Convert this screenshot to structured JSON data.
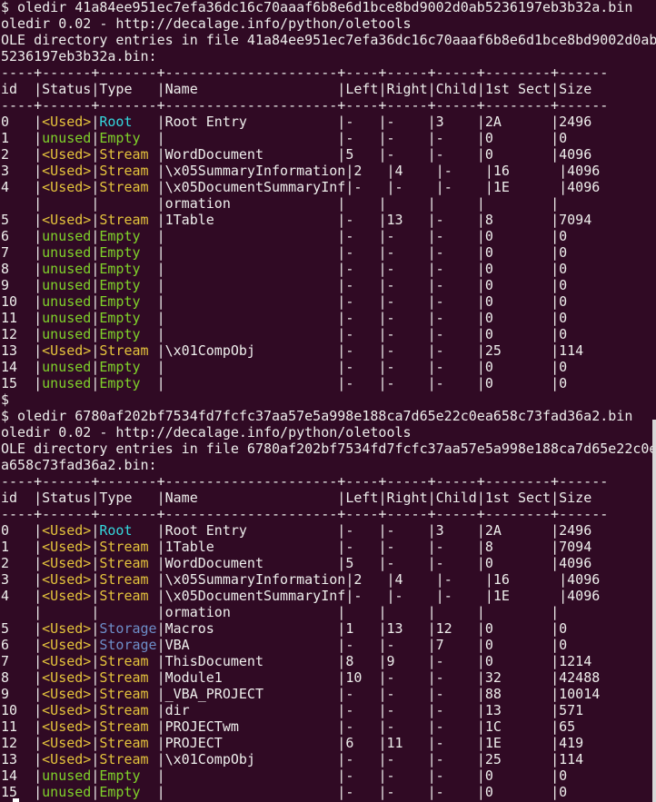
{
  "colors": {
    "background": "#300a24",
    "text": "#eeeeec",
    "used": "#e5c43c",
    "unused": "#7fd22a",
    "root": "#34d6dc",
    "storage": "#6d8ec8",
    "stream": "#e5c43c",
    "empty": "#7fd22a"
  },
  "table_header": {
    "id": "id",
    "status": "Status",
    "type": "Type",
    "name": "Name",
    "left": "Left",
    "right": "Right",
    "child": "Child",
    "sect": "1st Sect",
    "size": "Size"
  },
  "separator": "----+------+-------+---------------------+----+-----+-----+--------+------",
  "prompt_only": "$",
  "blocks": [
    {
      "command": "$ oledir 41a84ee951ec7efa36dc16c70aaaf6b8e6d1bce8bd9002d0ab5236197eb3b32a.bin",
      "version": "oledir 0.02 - http://decalage.info/python/oletools",
      "entries_line": "OLE directory entries in file 41a84ee951ec7efa36dc16c70aaaf6b8e6d1bce8bd9002d0ab5236197eb3b32a.bin:",
      "rows": [
        {
          "id": "0",
          "status": "<Used>",
          "type": "Root",
          "name": "Root Entry",
          "left": "-",
          "right": "-",
          "child": "3",
          "sect": "2A",
          "size": "2496"
        },
        {
          "id": "1",
          "status": "unused",
          "type": "Empty",
          "name": "",
          "left": "-",
          "right": "-",
          "child": "-",
          "sect": "0",
          "size": "0"
        },
        {
          "id": "2",
          "status": "<Used>",
          "type": "Stream",
          "name": "WordDocument",
          "left": "5",
          "right": "-",
          "child": "-",
          "sect": "0",
          "size": "4096"
        },
        {
          "id": "3",
          "status": "<Used>",
          "type": "Stream",
          "name": "\\x05SummaryInformation",
          "left": "2",
          "right": "4",
          "child": "-",
          "sect": "16",
          "size": "4096"
        },
        {
          "id": "4",
          "status": "<Used>",
          "type": "Stream",
          "name": "\\x05DocumentSummaryInf",
          "name_cont": "ormation",
          "left": "-",
          "right": "-",
          "child": "-",
          "sect": "1E",
          "size": "4096"
        },
        {
          "id": "5",
          "status": "<Used>",
          "type": "Stream",
          "name": "1Table",
          "left": "-",
          "right": "13",
          "child": "-",
          "sect": "8",
          "size": "7094"
        },
        {
          "id": "6",
          "status": "unused",
          "type": "Empty",
          "name": "",
          "left": "-",
          "right": "-",
          "child": "-",
          "sect": "0",
          "size": "0"
        },
        {
          "id": "7",
          "status": "unused",
          "type": "Empty",
          "name": "",
          "left": "-",
          "right": "-",
          "child": "-",
          "sect": "0",
          "size": "0"
        },
        {
          "id": "8",
          "status": "unused",
          "type": "Empty",
          "name": "",
          "left": "-",
          "right": "-",
          "child": "-",
          "sect": "0",
          "size": "0"
        },
        {
          "id": "9",
          "status": "unused",
          "type": "Empty",
          "name": "",
          "left": "-",
          "right": "-",
          "child": "-",
          "sect": "0",
          "size": "0"
        },
        {
          "id": "10",
          "status": "unused",
          "type": "Empty",
          "name": "",
          "left": "-",
          "right": "-",
          "child": "-",
          "sect": "0",
          "size": "0"
        },
        {
          "id": "11",
          "status": "unused",
          "type": "Empty",
          "name": "",
          "left": "-",
          "right": "-",
          "child": "-",
          "sect": "0",
          "size": "0"
        },
        {
          "id": "12",
          "status": "unused",
          "type": "Empty",
          "name": "",
          "left": "-",
          "right": "-",
          "child": "-",
          "sect": "0",
          "size": "0"
        },
        {
          "id": "13",
          "status": "<Used>",
          "type": "Stream",
          "name": "\\x01CompObj",
          "left": "-",
          "right": "-",
          "child": "-",
          "sect": "25",
          "size": "114"
        },
        {
          "id": "14",
          "status": "unused",
          "type": "Empty",
          "name": "",
          "left": "-",
          "right": "-",
          "child": "-",
          "sect": "0",
          "size": "0"
        },
        {
          "id": "15",
          "status": "unused",
          "type": "Empty",
          "name": "",
          "left": "-",
          "right": "-",
          "child": "-",
          "sect": "0",
          "size": "0"
        }
      ]
    },
    {
      "command": "$ oledir 6780af202bf7534fd7fcfc37aa57e5a998e188ca7d65e22c0ea658c73fad36a2.bin",
      "version": "oledir 0.02 - http://decalage.info/python/oletools",
      "entries_line": "OLE directory entries in file 6780af202bf7534fd7fcfc37aa57e5a998e188ca7d65e22c0ea658c73fad36a2.bin:",
      "rows": [
        {
          "id": "0",
          "status": "<Used>",
          "type": "Root",
          "name": "Root Entry",
          "left": "-",
          "right": "-",
          "child": "3",
          "sect": "2A",
          "size": "2496"
        },
        {
          "id": "1",
          "status": "<Used>",
          "type": "Stream",
          "name": "1Table",
          "left": "-",
          "right": "-",
          "child": "-",
          "sect": "8",
          "size": "7094"
        },
        {
          "id": "2",
          "status": "<Used>",
          "type": "Stream",
          "name": "WordDocument",
          "left": "5",
          "right": "-",
          "child": "-",
          "sect": "0",
          "size": "4096"
        },
        {
          "id": "3",
          "status": "<Used>",
          "type": "Stream",
          "name": "\\x05SummaryInformation",
          "left": "2",
          "right": "4",
          "child": "-",
          "sect": "16",
          "size": "4096"
        },
        {
          "id": "4",
          "status": "<Used>",
          "type": "Stream",
          "name": "\\x05DocumentSummaryInf",
          "name_cont": "ormation",
          "left": "-",
          "right": "-",
          "child": "-",
          "sect": "1E",
          "size": "4096"
        },
        {
          "id": "5",
          "status": "<Used>",
          "type": "Storage",
          "name": "Macros",
          "left": "1",
          "right": "13",
          "child": "12",
          "sect": "0",
          "size": "0"
        },
        {
          "id": "6",
          "status": "<Used>",
          "type": "Storage",
          "name": "VBA",
          "left": "-",
          "right": "-",
          "child": "7",
          "sect": "0",
          "size": "0"
        },
        {
          "id": "7",
          "status": "<Used>",
          "type": "Stream",
          "name": "ThisDocument",
          "left": "8",
          "right": "9",
          "child": "-",
          "sect": "0",
          "size": "1214"
        },
        {
          "id": "8",
          "status": "<Used>",
          "type": "Stream",
          "name": "Module1",
          "left": "10",
          "right": "-",
          "child": "-",
          "sect": "32",
          "size": "42488"
        },
        {
          "id": "9",
          "status": "<Used>",
          "type": "Stream",
          "name": "_VBA_PROJECT",
          "left": "-",
          "right": "-",
          "child": "-",
          "sect": "88",
          "size": "10014"
        },
        {
          "id": "10",
          "status": "<Used>",
          "type": "Stream",
          "name": "dir",
          "left": "-",
          "right": "-",
          "child": "-",
          "sect": "13",
          "size": "571"
        },
        {
          "id": "11",
          "status": "<Used>",
          "type": "Stream",
          "name": "PROJECTwm",
          "left": "-",
          "right": "-",
          "child": "-",
          "sect": "1C",
          "size": "65"
        },
        {
          "id": "12",
          "status": "<Used>",
          "type": "Stream",
          "name": "PROJECT",
          "left": "6",
          "right": "11",
          "child": "-",
          "sect": "1E",
          "size": "419"
        },
        {
          "id": "13",
          "status": "<Used>",
          "type": "Stream",
          "name": "\\x01CompObj",
          "left": "-",
          "right": "-",
          "child": "-",
          "sect": "25",
          "size": "114"
        },
        {
          "id": "14",
          "status": "unused",
          "type": "Empty",
          "name": "",
          "left": "-",
          "right": "-",
          "child": "-",
          "sect": "0",
          "size": "0"
        },
        {
          "id": "15",
          "status": "unused",
          "type": "Empty",
          "name": "",
          "left": "-",
          "right": "-",
          "child": "-",
          "sect": "0",
          "size": "0"
        }
      ]
    }
  ]
}
